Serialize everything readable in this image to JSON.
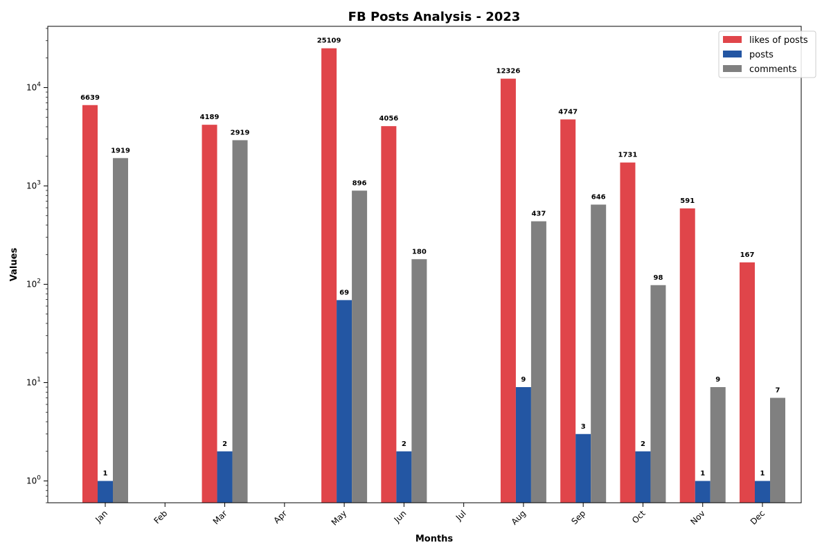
{
  "chart_data": {
    "type": "bar",
    "title": "FB Posts Analysis - 2023",
    "xlabel": "Months",
    "ylabel": "Values",
    "yscale": "log",
    "ylim": [
      0.6,
      42000
    ],
    "yticks": [
      {
        "value": 1,
        "base": "10",
        "exp": "0"
      },
      {
        "value": 10,
        "base": "10",
        "exp": "1"
      },
      {
        "value": 100,
        "base": "10",
        "exp": "2"
      },
      {
        "value": 1000,
        "base": "10",
        "exp": "3"
      },
      {
        "value": 10000,
        "base": "10",
        "exp": "4"
      }
    ],
    "categories": [
      "Jan",
      "Feb",
      "Mar",
      "Apr",
      "May",
      "Jun",
      "Jul",
      "Aug",
      "Sep",
      "Oct",
      "Nov",
      "Dec"
    ],
    "series": [
      {
        "name": "likes of posts",
        "color": "#e0454a",
        "values": [
          6639,
          null,
          4189,
          null,
          25109,
          4056,
          null,
          12326,
          4747,
          1731,
          591,
          167
        ]
      },
      {
        "name": "posts",
        "color": "#2356a3",
        "values": [
          1,
          null,
          2,
          null,
          69,
          2,
          null,
          9,
          3,
          2,
          1,
          1
        ]
      },
      {
        "name": "comments",
        "color": "#808080",
        "values": [
          1919,
          null,
          2919,
          null,
          896,
          180,
          null,
          437,
          646,
          98,
          9,
          7
        ]
      }
    ],
    "legend_position": "top-right",
    "grid": false
  }
}
